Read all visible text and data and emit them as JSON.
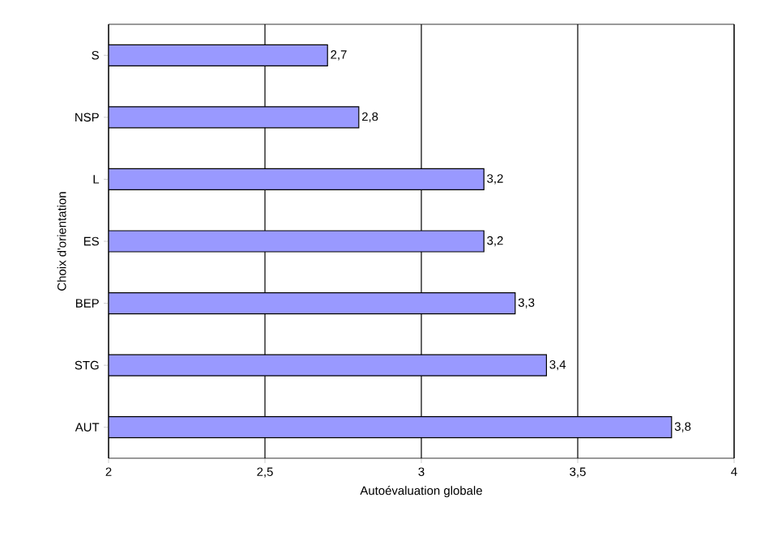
{
  "chart_data": {
    "type": "bar",
    "orientation": "horizontal",
    "categories": [
      "S",
      "NSP",
      "L",
      "ES",
      "BEP",
      "STG",
      "AUT"
    ],
    "values": [
      2.7,
      2.8,
      3.2,
      3.2,
      3.3,
      3.4,
      3.8
    ],
    "value_labels": [
      "2,7",
      "2,8",
      "3,2",
      "3,2",
      "3,3",
      "3,4",
      "3,8"
    ],
    "color": "#9999ff",
    "xlim": [
      2,
      4
    ],
    "xticks": [
      2,
      {
        "value": 2.5,
        "label": "2,5"
      },
      3,
      {
        "value": 3.5,
        "label": "3,5"
      },
      4
    ],
    "xlabel": "Autoévaluation globale",
    "ylabel": "Choix d'orientation",
    "grid": "x"
  }
}
